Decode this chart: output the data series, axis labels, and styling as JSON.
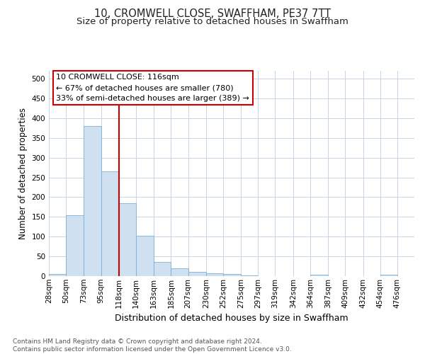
{
  "title": "10, CROMWELL CLOSE, SWAFFHAM, PE37 7TT",
  "subtitle": "Size of property relative to detached houses in Swaffham",
  "xlabel": "Distribution of detached houses by size in Swaffham",
  "ylabel": "Number of detached properties",
  "footer_line1": "Contains HM Land Registry data © Crown copyright and database right 2024.",
  "footer_line2": "Contains public sector information licensed under the Open Government Licence v3.0.",
  "bar_edges": [
    28,
    50,
    73,
    95,
    118,
    140,
    163,
    185,
    207,
    230,
    252,
    275,
    297,
    319,
    342,
    364,
    387,
    409,
    432,
    454,
    476
  ],
  "bar_heights": [
    5,
    154,
    381,
    265,
    184,
    103,
    36,
    20,
    11,
    8,
    5,
    2,
    0,
    0,
    0,
    4,
    0,
    0,
    0,
    4
  ],
  "bar_color": "#cfe0f0",
  "bar_edge_color": "#7bafd4",
  "grid_color": "#c8d4e4",
  "reference_line_x": 118,
  "reference_line_color": "#cc0000",
  "annotation_line1": "10 CROMWELL CLOSE: 116sqm",
  "annotation_line2": "← 67% of detached houses are smaller (780)",
  "annotation_line3": "33% of semi-detached houses are larger (389) →",
  "ylim": [
    0,
    520
  ],
  "yticks": [
    0,
    50,
    100,
    150,
    200,
    250,
    300,
    350,
    400,
    450,
    500
  ],
  "bg_color": "#ffffff",
  "title_fontsize": 10.5,
  "subtitle_fontsize": 9.5,
  "xlabel_fontsize": 9,
  "ylabel_fontsize": 8.5,
  "tick_fontsize": 7.5,
  "annotation_fontsize": 8,
  "footer_fontsize": 6.5
}
